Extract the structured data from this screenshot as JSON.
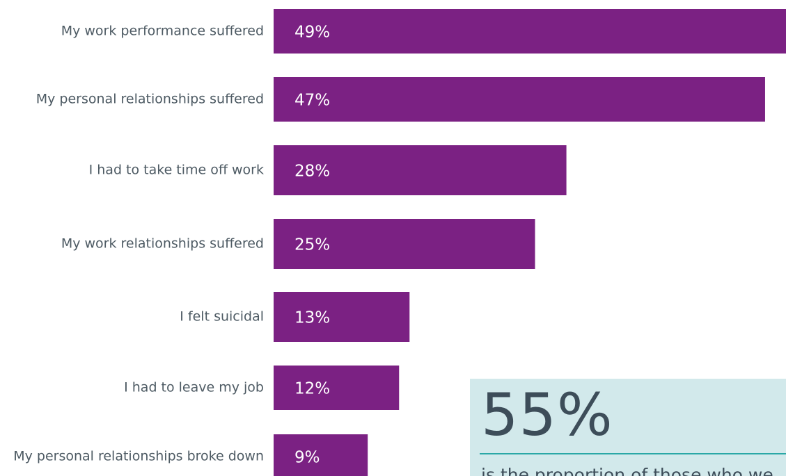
{
  "chart_data": {
    "type": "bar",
    "orientation": "horizontal",
    "categories": [
      "My work performance suffered",
      "My personal relationships suffered",
      "I had to take time off work",
      "My work relationships suffered",
      "I felt suicidal",
      "I had to leave my job",
      "My personal relationships broke down"
    ],
    "values": [
      49,
      47,
      28,
      25,
      13,
      12,
      9
    ],
    "value_labels": [
      "49%",
      "47%",
      "28%",
      "25%",
      "13%",
      "12%",
      "9%"
    ],
    "unit": "%",
    "xlim": [
      0,
      49
    ],
    "grid": false,
    "bar_color": "#7b2183"
  },
  "callout": {
    "number": "55%",
    "text": "is the proportion of those who we",
    "background_color": "#d2e9eb",
    "rule_color": "#2aa8a6"
  }
}
